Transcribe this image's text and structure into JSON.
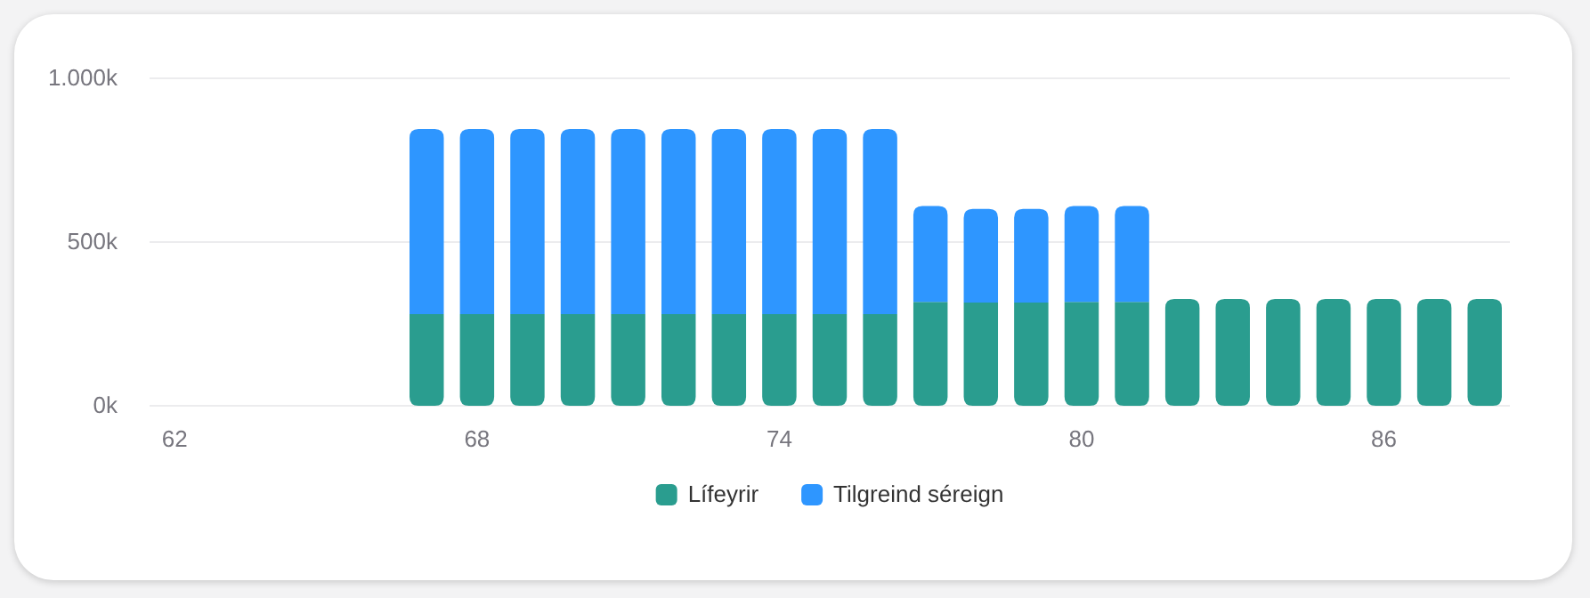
{
  "chart_data": {
    "type": "bar",
    "stacked": true,
    "categories": [
      "62",
      null,
      null,
      null,
      null,
      null,
      "68",
      null,
      null,
      null,
      null,
      null,
      "74",
      null,
      null,
      null,
      null,
      null,
      "80",
      null,
      null,
      null,
      null,
      null,
      "86",
      null,
      null
    ],
    "series": [
      {
        "name": "Lífeyrir",
        "color": "#2a9d8f",
        "values": [
          null,
          null,
          null,
          null,
          null,
          280,
          280,
          280,
          280,
          280,
          280,
          280,
          280,
          280,
          280,
          317,
          315,
          315,
          317,
          317,
          326,
          326,
          326,
          326,
          326,
          326,
          326
        ]
      },
      {
        "name": "Tilgreind séreign",
        "color": "#2e96ff",
        "values": [
          null,
          null,
          null,
          null,
          null,
          565,
          565,
          565,
          565,
          565,
          565,
          565,
          565,
          565,
          565,
          293,
          286,
          286,
          293,
          293,
          null,
          null,
          null,
          null,
          null,
          null,
          null
        ]
      }
    ],
    "ylim": [
      0,
      1000
    ],
    "yticks": [
      {
        "value": 0,
        "label": "0k"
      },
      {
        "value": 500,
        "label": "500k"
      },
      {
        "value": 1000,
        "label": "1.000k"
      }
    ],
    "grid": "y",
    "legend": "bottom"
  }
}
